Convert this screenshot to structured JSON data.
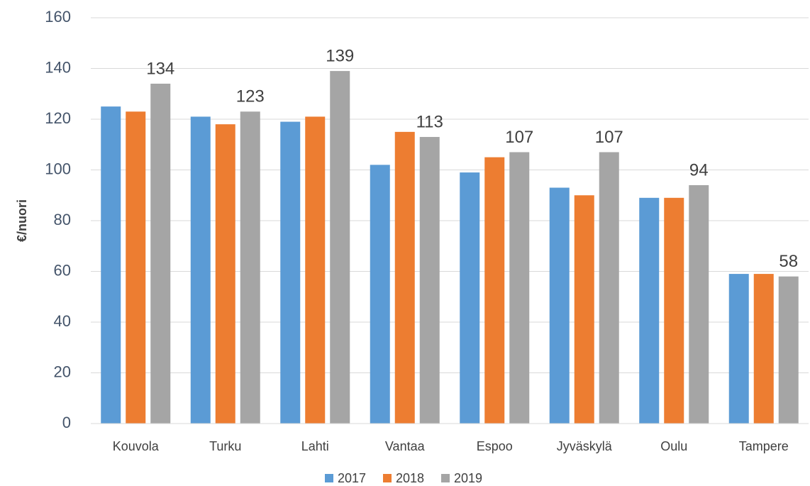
{
  "chart_data": {
    "type": "bar",
    "y_label": "€/nuori",
    "categories": [
      "Kouvola",
      "Turku",
      "Lahti",
      "Vantaa",
      "Espoo",
      "Jyväskylä",
      "Oulu",
      "Tampere"
    ],
    "series": [
      {
        "name": "2017",
        "color": "#5b9bd5",
        "values": [
          125,
          121,
          119,
          102,
          99,
          93,
          89,
          59
        ]
      },
      {
        "name": "2018",
        "color": "#ed7d31",
        "values": [
          123,
          118,
          121,
          115,
          105,
          90,
          89,
          59
        ]
      },
      {
        "name": "2019",
        "color": "#a5a5a5",
        "values": [
          134,
          123,
          139,
          113,
          107,
          107,
          94,
          58
        ],
        "data_labels": true
      }
    ],
    "ylim": [
      0,
      160
    ],
    "yticks": [
      0,
      20,
      40,
      60,
      80,
      100,
      120,
      140,
      160
    ],
    "grid": true,
    "legend": "bottom"
  }
}
